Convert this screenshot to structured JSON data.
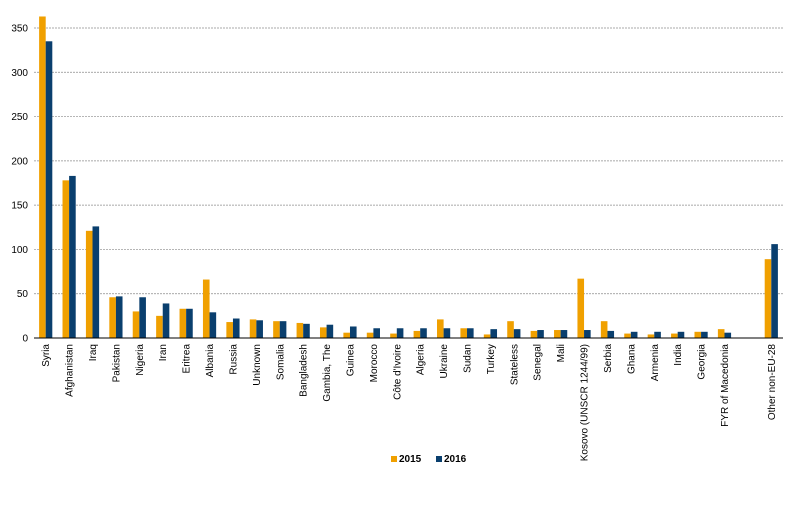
{
  "chart_data": {
    "type": "bar",
    "title": "",
    "xlabel": "",
    "ylabel": "",
    "ylim": [
      0,
      350
    ],
    "yticks": [
      0,
      50,
      100,
      150,
      200,
      250,
      300,
      350
    ],
    "grid": true,
    "legend_position": "bottom-center",
    "categories": [
      "Syria",
      "Afghanistan",
      "Iraq",
      "Pakistan",
      "Nigeria",
      "Iran",
      "Eritrea",
      "Albania",
      "Russia",
      "Unknown",
      "Somalia",
      "Bangladesh",
      "Gambia, The",
      "Guinea",
      "Morocco",
      "Côte d'Ivoire",
      "Algeria",
      "Ukraine",
      "Sudan",
      "Turkey",
      "Stateless",
      "Senegal",
      "Mali",
      "Kosovo (UNSCR 1244/99)",
      "Serbia",
      "Ghana",
      "Armenia",
      "India",
      "Georgia",
      "FYR of Macedonia",
      "",
      "Other non-EU-28"
    ],
    "series": [
      {
        "name": "2015",
        "color": "#f0a000",
        "values": [
          363,
          178,
          121,
          46,
          30,
          25,
          33,
          66,
          18,
          21,
          19,
          17,
          12,
          6,
          6,
          5,
          8,
          21,
          11,
          4,
          19,
          8,
          9,
          67,
          19,
          5,
          4,
          5,
          7,
          10,
          null,
          89
        ]
      },
      {
        "name": "2016",
        "color": "#0a3f6e",
        "values": [
          335,
          183,
          126,
          47,
          46,
          39,
          33,
          29,
          22,
          20,
          19,
          16,
          15,
          13,
          11,
          11,
          11,
          11,
          11,
          10,
          10,
          9,
          9,
          9,
          8,
          7,
          7,
          7,
          7,
          6,
          null,
          106
        ]
      }
    ]
  }
}
